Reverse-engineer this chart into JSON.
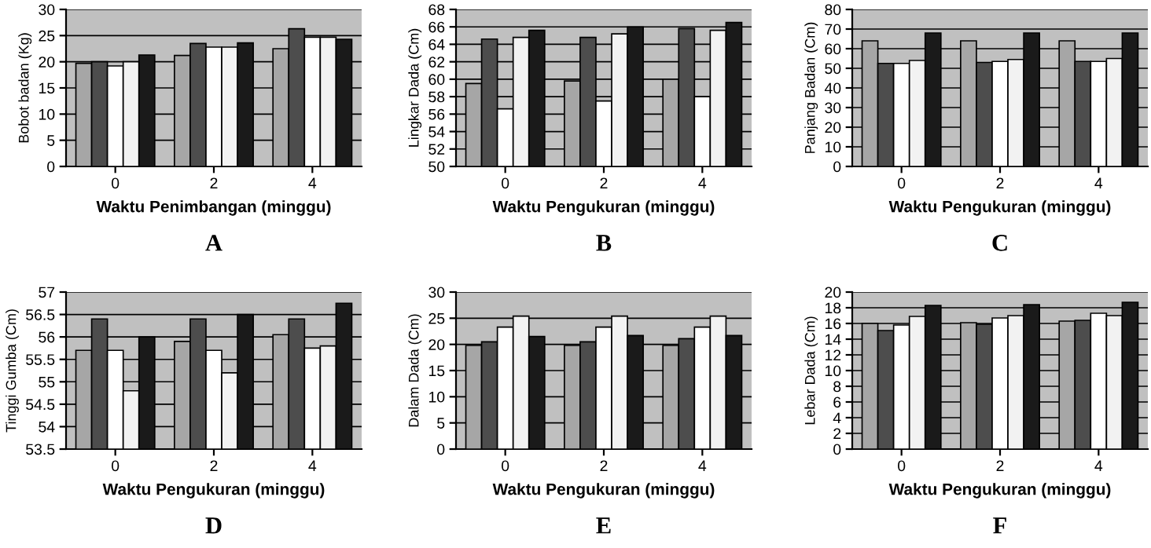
{
  "chart_data": [
    {
      "type": "bar",
      "categories": [
        "0",
        "2",
        "4"
      ],
      "xlabel": "Waktu Penimbangan (minggu)",
      "ylabel": "Bobot badan (Kg)",
      "ylim": [
        0,
        30
      ],
      "yticks": [
        0,
        5,
        10,
        15,
        20,
        25,
        30
      ],
      "grid": "y",
      "annotations": [
        "A"
      ],
      "series": [
        {
          "color": "#a6a6a6",
          "values": [
            19.7,
            21.2,
            22.5
          ]
        },
        {
          "color": "#4d4d4d",
          "values": [
            20,
            23.5,
            26.3
          ]
        },
        {
          "color": "#ffffff",
          "values": [
            19.2,
            22.8,
            24.7
          ]
        },
        {
          "color": "#f2f2f2",
          "values": [
            20,
            22.8,
            24.7
          ]
        },
        {
          "color": "#1a1a1a",
          "values": [
            21.3,
            23.6,
            24.3
          ]
        }
      ]
    },
    {
      "type": "bar",
      "categories": [
        "0",
        "2",
        "4"
      ],
      "xlabel": "Waktu Pengukuran (minggu)",
      "ylabel": "Lingkar Dada (Cm)",
      "ylim": [
        50,
        68
      ],
      "yticks": [
        50,
        52,
        54,
        56,
        58,
        60,
        62,
        64,
        66,
        68
      ],
      "grid": "y",
      "annotations": [
        "B"
      ],
      "series": [
        {
          "color": "#a6a6a6",
          "values": [
            59.5,
            59.8,
            60
          ]
        },
        {
          "color": "#4d4d4d",
          "values": [
            64.6,
            64.8,
            65.8
          ]
        },
        {
          "color": "#ffffff",
          "values": [
            56.6,
            57.5,
            58
          ]
        },
        {
          "color": "#f2f2f2",
          "values": [
            64.8,
            65.2,
            65.6
          ]
        },
        {
          "color": "#1a1a1a",
          "values": [
            65.6,
            66,
            66.5
          ]
        }
      ]
    },
    {
      "type": "bar",
      "categories": [
        "0",
        "2",
        "4"
      ],
      "xlabel": "Waktu Pengukuran (minggu)",
      "ylabel": "Panjang Badan (Cm)",
      "ylim": [
        0,
        80
      ],
      "yticks": [
        0,
        10,
        20,
        30,
        40,
        50,
        60,
        70,
        80
      ],
      "grid": "y",
      "annotations": [
        "C"
      ],
      "series": [
        {
          "color": "#a6a6a6",
          "values": [
            64,
            64,
            64
          ]
        },
        {
          "color": "#4d4d4d",
          "values": [
            52.5,
            53,
            53.5
          ]
        },
        {
          "color": "#ffffff",
          "values": [
            52.5,
            53.5,
            53.5
          ]
        },
        {
          "color": "#f2f2f2",
          "values": [
            54,
            54.5,
            55
          ]
        },
        {
          "color": "#1a1a1a",
          "values": [
            68,
            68,
            68
          ]
        }
      ]
    },
    {
      "type": "bar",
      "categories": [
        "0",
        "2",
        "4"
      ],
      "xlabel": "Waktu Pengukuran (minggu)",
      "ylabel": "Tinggi Gumba (Cm)",
      "ylim": [
        53.5,
        57
      ],
      "yticks": [
        53.5,
        54,
        54.5,
        55,
        55.5,
        56,
        56.5,
        57
      ],
      "grid": "y",
      "annotations": [
        "D"
      ],
      "series": [
        {
          "color": "#a6a6a6",
          "values": [
            55.7,
            55.9,
            56.05
          ]
        },
        {
          "color": "#4d4d4d",
          "values": [
            56.4,
            56.4,
            56.4
          ]
        },
        {
          "color": "#ffffff",
          "values": [
            55.7,
            55.7,
            55.75
          ]
        },
        {
          "color": "#f2f2f2",
          "values": [
            54.8,
            55.2,
            55.8
          ]
        },
        {
          "color": "#1a1a1a",
          "values": [
            56,
            56.5,
            56.75
          ]
        }
      ]
    },
    {
      "type": "bar",
      "categories": [
        "0",
        "2",
        "4"
      ],
      "xlabel": "Waktu Pengukuran (minggu)",
      "ylabel": "Dalam Dada (Cm)",
      "ylim": [
        0,
        30
      ],
      "yticks": [
        0,
        5,
        10,
        15,
        20,
        25,
        30
      ],
      "grid": "y",
      "annotations": [
        "E"
      ],
      "series": [
        {
          "color": "#a6a6a6",
          "values": [
            19.8,
            19.8,
            19.8
          ]
        },
        {
          "color": "#4d4d4d",
          "values": [
            20.5,
            20.5,
            21.1
          ]
        },
        {
          "color": "#ffffff",
          "values": [
            23.3,
            23.3,
            23.3
          ]
        },
        {
          "color": "#f2f2f2",
          "values": [
            25.4,
            25.4,
            25.4
          ]
        },
        {
          "color": "#1a1a1a",
          "values": [
            21.5,
            21.7,
            21.7
          ]
        }
      ]
    },
    {
      "type": "bar",
      "categories": [
        "0",
        "2",
        "4"
      ],
      "xlabel": "Waktu Pengukuran (minggu)",
      "ylabel": "Lebar Dada (Cm)",
      "ylim": [
        0,
        20
      ],
      "yticks": [
        0,
        2,
        4,
        6,
        8,
        10,
        12,
        14,
        16,
        18,
        20
      ],
      "grid": "y",
      "annotations": [
        "F"
      ],
      "series": [
        {
          "color": "#a6a6a6",
          "values": [
            16,
            16.1,
            16.3
          ]
        },
        {
          "color": "#4d4d4d",
          "values": [
            15.1,
            15.9,
            16.4
          ]
        },
        {
          "color": "#ffffff",
          "values": [
            15.8,
            16.7,
            17.3
          ]
        },
        {
          "color": "#f2f2f2",
          "values": [
            16.9,
            17,
            17
          ]
        },
        {
          "color": "#1a1a1a",
          "values": [
            18.3,
            18.4,
            18.7
          ]
        }
      ]
    }
  ]
}
